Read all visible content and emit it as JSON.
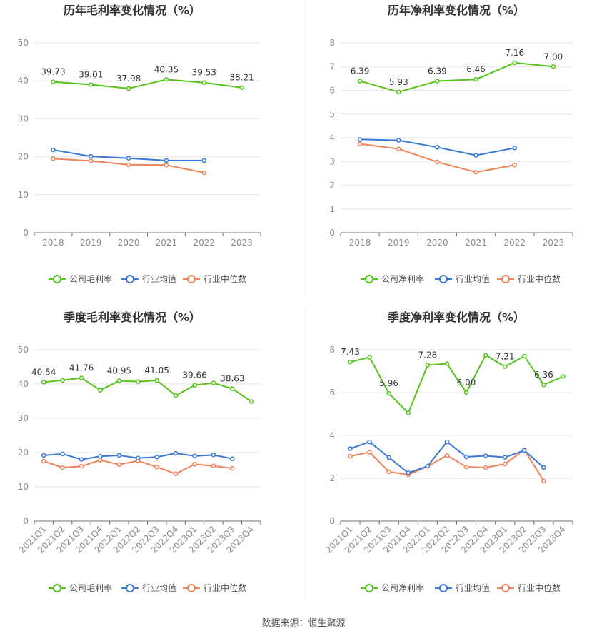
{
  "footer": {
    "source": "数据来源：恒生聚源"
  },
  "legend_labels": {
    "company_gross": "公司毛利率",
    "company_net": "公司净利率",
    "industry_avg": "行业均值",
    "industry_median": "行业中位数"
  },
  "colors": {
    "company": "#52c41a",
    "industry_avg": "#3a78d8",
    "industry_median": "#f08359"
  },
  "chart_data": [
    {
      "type": "line",
      "title": "历年毛利率变化情况（%）",
      "x": [
        "2018",
        "2019",
        "2020",
        "2021",
        "2022",
        "2023"
      ],
      "ylim": [
        0,
        50
      ],
      "yticks": [
        0,
        10,
        20,
        30,
        40,
        50
      ],
      "grid": true,
      "legend": "bottom",
      "series": [
        {
          "name": "公司毛利率",
          "color": "#52c41a",
          "values": [
            39.73,
            39.01,
            37.98,
            40.35,
            39.53,
            38.21
          ],
          "labels": [
            "39.73",
            "39.01",
            "37.98",
            "40.35",
            "39.53",
            "38.21"
          ]
        },
        {
          "name": "行业均值",
          "color": "#3a78d8",
          "values": [
            21.8,
            20.1,
            19.6,
            19.0,
            19.0,
            null
          ]
        },
        {
          "name": "行业中位数",
          "color": "#f08359",
          "values": [
            19.5,
            18.9,
            17.9,
            17.8,
            15.8,
            null
          ]
        }
      ]
    },
    {
      "type": "line",
      "title": "历年净利率变化情况（%）",
      "x": [
        "2018",
        "2019",
        "2020",
        "2021",
        "2022",
        "2023"
      ],
      "ylim": [
        0,
        8
      ],
      "yticks": [
        0,
        1,
        2,
        3,
        4,
        5,
        6,
        7,
        8
      ],
      "grid": true,
      "legend": "bottom",
      "series": [
        {
          "name": "公司净利率",
          "color": "#52c41a",
          "values": [
            6.39,
            5.93,
            6.39,
            6.46,
            7.16,
            7.0
          ],
          "labels": [
            "6.39",
            "5.93",
            "6.39",
            "6.46",
            "7.16",
            "7.00"
          ]
        },
        {
          "name": "行业均值",
          "color": "#3a78d8",
          "values": [
            3.93,
            3.89,
            3.6,
            3.26,
            3.57,
            null
          ]
        },
        {
          "name": "行业中位数",
          "color": "#f08359",
          "values": [
            3.74,
            3.53,
            2.98,
            2.55,
            2.85,
            null
          ]
        }
      ]
    },
    {
      "type": "line",
      "title": "季度毛利率变化情况（%）",
      "x": [
        "2021Q1",
        "2021Q2",
        "2021Q3",
        "2021Q4",
        "2022Q1",
        "2022Q2",
        "2022Q3",
        "2022Q4",
        "2023Q1",
        "2023Q2",
        "2023Q3",
        "2023Q4"
      ],
      "ylim": [
        0,
        50
      ],
      "yticks": [
        0,
        10,
        20,
        30,
        40,
        50
      ],
      "grid": true,
      "legend": "bottom",
      "series": [
        {
          "name": "公司毛利率",
          "color": "#52c41a",
          "values": [
            40.54,
            41.1,
            41.76,
            38.2,
            40.95,
            40.7,
            41.05,
            36.6,
            39.66,
            40.3,
            38.63,
            34.9
          ],
          "labels": [
            "40.54",
            "",
            "41.76",
            "",
            "40.95",
            "",
            "41.05",
            "",
            "39.66",
            "",
            "38.63",
            ""
          ]
        },
        {
          "name": "行业均值",
          "color": "#3a78d8",
          "values": [
            19.2,
            19.6,
            18.0,
            18.9,
            19.2,
            18.4,
            18.7,
            19.8,
            19.0,
            19.3,
            18.2,
            null
          ]
        },
        {
          "name": "行业中位数",
          "color": "#f08359",
          "values": [
            17.5,
            15.6,
            16.0,
            17.8,
            16.5,
            17.6,
            15.8,
            13.8,
            16.6,
            16.1,
            15.4,
            null
          ]
        }
      ]
    },
    {
      "type": "line",
      "title": "季度净利率变化情况（%）",
      "x": [
        "2021Q1",
        "2021Q2",
        "2021Q3",
        "2021Q4",
        "2022Q1",
        "2022Q2",
        "2022Q3",
        "2022Q4",
        "2023Q1",
        "2023Q2",
        "2023Q3",
        "2023Q4"
      ],
      "ylim": [
        0,
        8
      ],
      "yticks": [
        0,
        2,
        4,
        6,
        8
      ],
      "grid": true,
      "legend": "bottom",
      "series": [
        {
          "name": "公司净利率",
          "color": "#52c41a",
          "values": [
            7.43,
            7.65,
            5.96,
            5.05,
            7.28,
            7.35,
            6.0,
            7.75,
            7.21,
            7.7,
            6.36,
            6.75
          ],
          "labels": [
            "7.43",
            "",
            "5.96",
            "",
            "7.28",
            "",
            "6.00",
            "",
            "7.21",
            "",
            "6.36",
            ""
          ]
        },
        {
          "name": "行业均值",
          "color": "#3a78d8",
          "values": [
            3.38,
            3.7,
            2.97,
            2.25,
            2.57,
            3.7,
            3.0,
            3.05,
            2.98,
            3.3,
            2.5,
            null
          ]
        },
        {
          "name": "行业中位数",
          "color": "#f08359",
          "values": [
            3.03,
            3.22,
            2.3,
            2.17,
            2.55,
            3.07,
            2.53,
            2.5,
            2.67,
            3.33,
            1.87,
            null
          ]
        }
      ]
    }
  ]
}
